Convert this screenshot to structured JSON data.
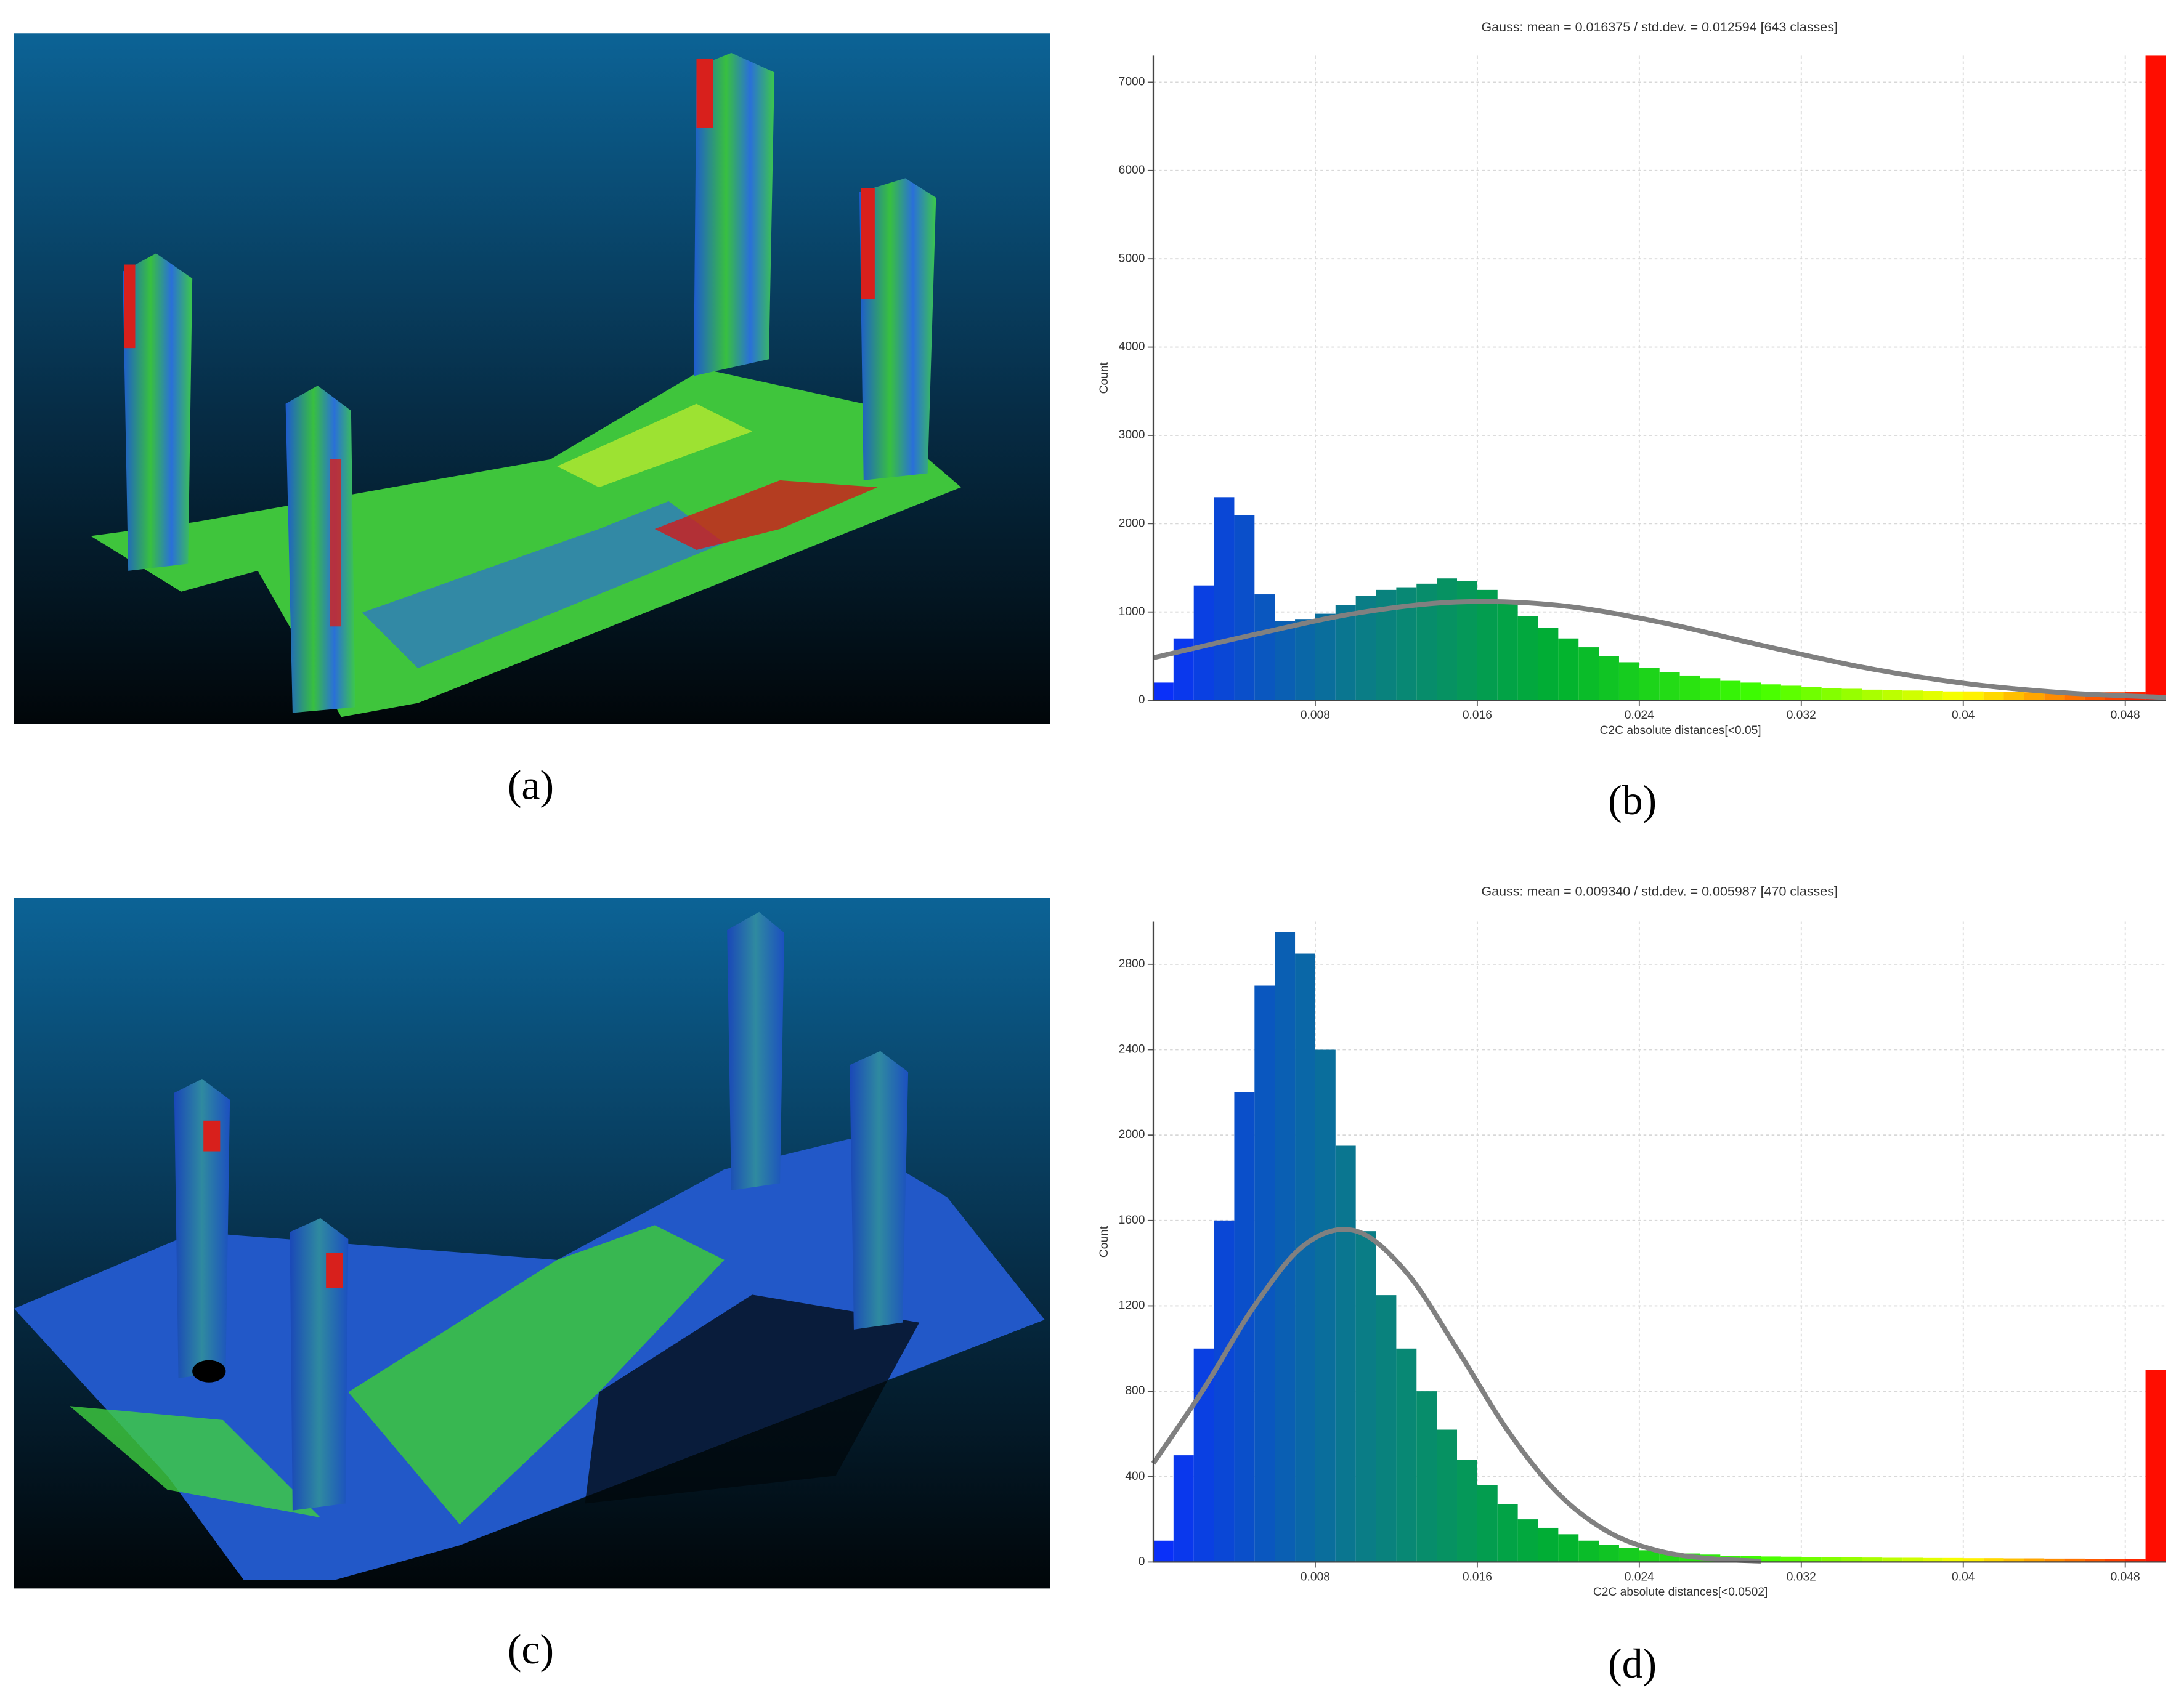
{
  "panels": {
    "labels": [
      "(a)",
      "(b)",
      "(c)",
      "(d)"
    ]
  },
  "chart_data": [
    {
      "type": "histogram",
      "title": "Gauss: mean = 0.016375 / std.dev. = 0.012594 [643 classes]",
      "x_label": "C2C absolute distances[<0.05]",
      "y_label": "Count",
      "bins": [
        0,
        0.001,
        0.002,
        0.003,
        0.004,
        0.005,
        0.006,
        0.007,
        0.008,
        0.009,
        0.01,
        0.011,
        0.012,
        0.013,
        0.014,
        0.015,
        0.016,
        0.017,
        0.018,
        0.019,
        0.02,
        0.021,
        0.022,
        0.023,
        0.024,
        0.025,
        0.026,
        0.027,
        0.028,
        0.029,
        0.03,
        0.031,
        0.032,
        0.033,
        0.034,
        0.035,
        0.036,
        0.037,
        0.038,
        0.039,
        0.04,
        0.041,
        0.042,
        0.043,
        0.044,
        0.045,
        0.046,
        0.047,
        0.048,
        0.049,
        0.05
      ],
      "counts": [
        200,
        700,
        1300,
        2300,
        2100,
        1200,
        900,
        920,
        980,
        1080,
        1180,
        1250,
        1280,
        1320,
        1380,
        1350,
        1250,
        1100,
        950,
        820,
        700,
        600,
        500,
        430,
        370,
        320,
        280,
        250,
        220,
        200,
        180,
        165,
        150,
        140,
        130,
        120,
        115,
        110,
        105,
        100,
        100,
        95,
        95,
        90,
        90,
        90,
        90,
        90,
        95,
        7300
      ],
      "colors": [
        "#0a2cff",
        "#0a7a8a",
        "#00b030",
        "#40ff00",
        "#ffff00",
        "#ff0000"
      ],
      "fit": {
        "color": "#808080",
        "x": [
          0,
          0.005,
          0.01,
          0.015,
          0.02,
          0.025,
          0.03,
          0.035,
          0.04,
          0.045,
          0.05
        ],
        "values": [
          481,
          745,
          985,
          1113,
          1075,
          886,
          624,
          375,
          193,
          85,
          32
        ]
      },
      "xlim": [
        0,
        0.05
      ],
      "xticks": [
        0.008,
        0.016,
        0.024,
        0.032,
        0.04,
        0.048
      ],
      "ylim": [
        0,
        7300
      ],
      "yticks": [
        0,
        1000,
        2000,
        3000,
        4000,
        5000,
        6000,
        7000
      ],
      "grid": true
    },
    {
      "type": "histogram",
      "title": "Gauss: mean = 0.009340 / std.dev. = 0.005987 [470 classes]",
      "x_label": "C2C absolute distances[<0.0502]",
      "y_label": "Count",
      "bins": [
        0,
        0.001,
        0.002,
        0.003,
        0.004,
        0.005,
        0.006,
        0.007,
        0.008,
        0.009,
        0.01,
        0.011,
        0.012,
        0.013,
        0.014,
        0.015,
        0.016,
        0.017,
        0.018,
        0.019,
        0.02,
        0.021,
        0.022,
        0.023,
        0.024,
        0.025,
        0.026,
        0.027,
        0.028,
        0.029,
        0.03,
        0.031,
        0.032,
        0.033,
        0.034,
        0.035,
        0.036,
        0.037,
        0.038,
        0.039,
        0.04,
        0.041,
        0.042,
        0.043,
        0.044,
        0.045,
        0.046,
        0.047,
        0.048,
        0.049,
        0.05
      ],
      "counts": [
        100,
        500,
        1000,
        1600,
        2200,
        2700,
        2950,
        2850,
        2400,
        1950,
        1550,
        1250,
        1000,
        800,
        620,
        480,
        360,
        270,
        200,
        160,
        130,
        100,
        80,
        65,
        55,
        45,
        40,
        35,
        30,
        28,
        26,
        25,
        24,
        23,
        22,
        21,
        20,
        20,
        19,
        19,
        18,
        18,
        17,
        17,
        16,
        16,
        15,
        15,
        15,
        900
      ],
      "colors": [
        "#0a2cff",
        "#0a7a8a",
        "#00b030",
        "#40ff00",
        "#ffff00",
        "#ff0000"
      ],
      "fit": {
        "color": "#808080",
        "x": [
          0,
          0.0025,
          0.005,
          0.0075,
          0.01,
          0.0125,
          0.015,
          0.0175,
          0.02,
          0.0225,
          0.025,
          0.0275,
          0.03
        ],
        "values": [
          462,
          812,
          1200,
          1488,
          1551,
          1357,
          998,
          616,
          320,
          139,
          51,
          16,
          4
        ]
      },
      "xlim": [
        0,
        0.05
      ],
      "xticks": [
        0.008,
        0.016,
        0.024,
        0.032,
        0.04,
        0.048
      ],
      "ylim": [
        0,
        3000
      ],
      "yticks": [
        0,
        400,
        800,
        1200,
        1600,
        2000,
        2400,
        2800
      ],
      "grid": true
    }
  ]
}
